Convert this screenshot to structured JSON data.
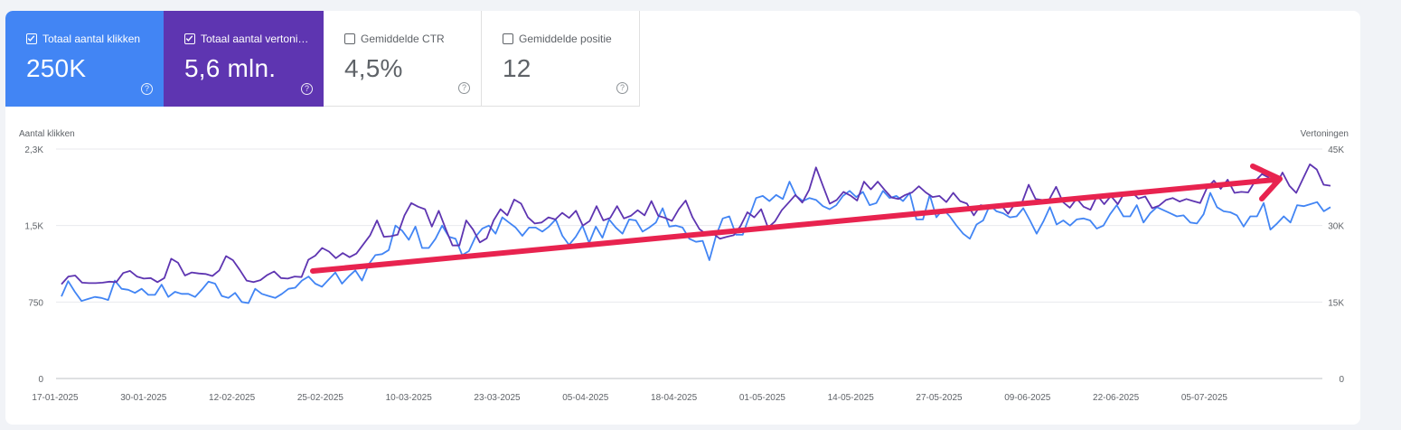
{
  "metrics": [
    {
      "label": "Totaal aantal klikken",
      "value": "250K",
      "checked": true,
      "color": "#4285f4"
    },
    {
      "label": "Totaal aantal vertoningen",
      "value": "5,6 mln.",
      "checked": true,
      "color": "#5e35b1"
    },
    {
      "label": "Gemiddelde CTR",
      "value": "4,5%",
      "checked": false
    },
    {
      "label": "Gemiddelde positie",
      "value": "12",
      "checked": false
    }
  ],
  "chart": {
    "left_axis_title": "Aantal klikken",
    "right_axis_title": "Vertoningen",
    "left_ticks": [
      "2,3K",
      "1,5K",
      "750",
      "0"
    ],
    "right_ticks": [
      "45K",
      "30K",
      "15K",
      "0"
    ],
    "x_ticks": [
      "17-01-2025",
      "30-01-2025",
      "12-02-2025",
      "25-02-2025",
      "10-03-2025",
      "23-03-2025",
      "05-04-2025",
      "18-04-2025",
      "01-05-2025",
      "14-05-2025",
      "27-05-2025",
      "09-06-2025",
      "22-06-2025",
      "05-07-2025"
    ]
  },
  "chart_data": {
    "type": "line",
    "x_start": "17-01-2025",
    "x_end": "20-07-2025",
    "ylim_left": [
      0,
      2250
    ],
    "ylim_right": [
      0,
      45000
    ],
    "series": [
      {
        "name": "Totaal aantal klikken",
        "axis": "left",
        "color": "#4285f4",
        "values": [
          805,
          955,
          850,
          760,
          780,
          800,
          790,
          770,
          960,
          880,
          870,
          840,
          880,
          820,
          820,
          920,
          800,
          850,
          830,
          830,
          800,
          870,
          950,
          930,
          810,
          790,
          840,
          750,
          740,
          880,
          830,
          810,
          790,
          830,
          880,
          890,
          960,
          1000,
          930,
          900,
          970,
          1040,
          930,
          1000,
          1060,
          960,
          1120,
          1210,
          1220,
          1260,
          1500,
          1450,
          1360,
          1490,
          1280,
          1280,
          1370,
          1500,
          1390,
          1370,
          1210,
          1250,
          1390,
          1470,
          1500,
          1420,
          1580,
          1530,
          1480,
          1400,
          1480,
          1480,
          1440,
          1490,
          1560,
          1400,
          1310,
          1390,
          1500,
          1330,
          1490,
          1380,
          1560,
          1480,
          1420,
          1560,
          1550,
          1440,
          1480,
          1530,
          1670,
          1490,
          1500,
          1480,
          1370,
          1340,
          1350,
          1160,
          1400,
          1570,
          1590,
          1410,
          1410,
          1590,
          1770,
          1790,
          1740,
          1800,
          1760,
          1930,
          1790,
          1740,
          1770,
          1750,
          1690,
          1660,
          1700,
          1790,
          1840,
          1780,
          1830,
          1700,
          1720,
          1840,
          1770,
          1790,
          1740,
          1820,
          1560,
          1560,
          1800,
          1580,
          1660,
          1590,
          1500,
          1420,
          1370,
          1510,
          1550,
          1700,
          1640,
          1620,
          1580,
          1590,
          1670,
          1550,
          1420,
          1540,
          1680,
          1510,
          1550,
          1500,
          1560,
          1570,
          1550,
          1470,
          1500,
          1610,
          1700,
          1590,
          1590,
          1700,
          1530,
          1620,
          1680,
          1650,
          1620,
          1590,
          1600,
          1530,
          1520,
          1610,
          1820,
          1680,
          1640,
          1630,
          1600,
          1490,
          1590,
          1590,
          1720,
          1460,
          1520,
          1590,
          1530,
          1700,
          1690,
          1710,
          1730,
          1640,
          1680
        ]
      },
      {
        "name": "Totaal aantal vertoningen",
        "axis": "right",
        "color": "#5e35b1",
        "values": [
          18500,
          20000,
          20200,
          18800,
          18700,
          18700,
          18800,
          19000,
          18900,
          20700,
          21100,
          20000,
          19600,
          19700,
          18900,
          19700,
          23500,
          22700,
          20200,
          20800,
          20600,
          20500,
          20100,
          21200,
          24000,
          23200,
          21300,
          19200,
          18900,
          19300,
          20300,
          21000,
          19700,
          19600,
          20000,
          19900,
          23300,
          24100,
          25600,
          24900,
          23600,
          24600,
          23800,
          24500,
          26300,
          28100,
          31000,
          27800,
          27900,
          28200,
          32000,
          34400,
          33700,
          33200,
          29800,
          32900,
          29400,
          26100,
          26100,
          31000,
          29200,
          26700,
          27500,
          31000,
          33200,
          32000,
          35100,
          34300,
          31600,
          30400,
          30600,
          31600,
          31200,
          32500,
          31500,
          32900,
          30000,
          30900,
          33800,
          31000,
          31500,
          33800,
          31400,
          31900,
          33000,
          32000,
          34800,
          31900,
          31500,
          30900,
          33200,
          34900,
          31600,
          29300,
          28300,
          28400,
          27400,
          27800,
          28100,
          29900,
          32600,
          31600,
          33200,
          29600,
          30800,
          33000,
          34500,
          36000,
          34500,
          37000,
          41400,
          37800,
          34300,
          35000,
          36600,
          35900,
          34900,
          38600,
          37100,
          38600,
          37000,
          35500,
          35200,
          36000,
          36500,
          37700,
          36500,
          35600,
          35800,
          34600,
          36400,
          34800,
          34300,
          32000,
          34000,
          33700,
          33700,
          34000,
          32300,
          34300,
          34400,
          38000,
          35200,
          35000,
          35100,
          37600,
          34600,
          33500,
          35300,
          33700,
          33100,
          35900,
          34200,
          35800,
          34200,
          36500,
          36600,
          35300,
          35700,
          33400,
          33900,
          35000,
          35400,
          34700,
          35200,
          34800,
          34400,
          37400,
          38800,
          37200,
          39000,
          36400,
          36600,
          36500,
          38700,
          40100,
          39400,
          37800,
          40400,
          37800,
          36400,
          39200,
          42000,
          41000,
          38000,
          37800
        ]
      }
    ]
  }
}
